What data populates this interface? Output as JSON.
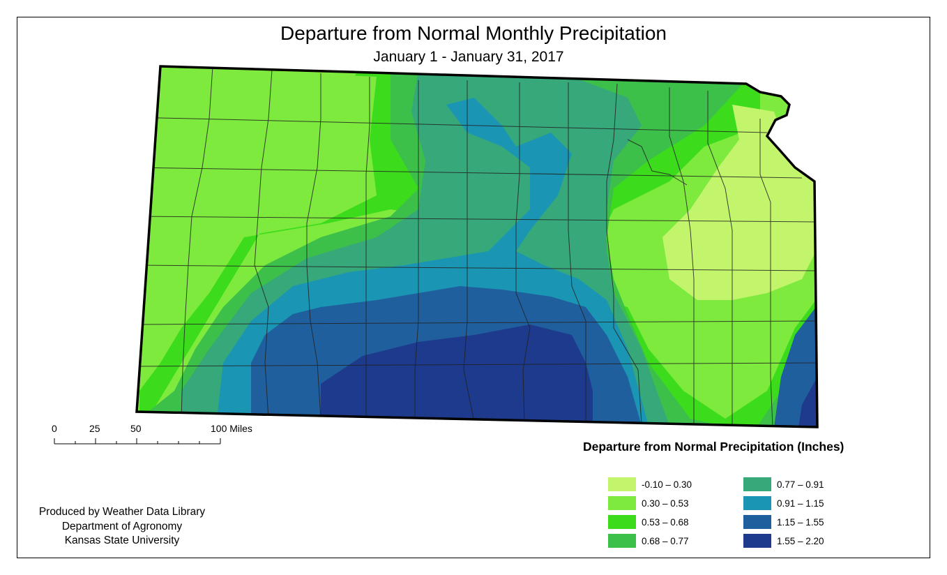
{
  "title": "Departure from Normal Monthly Precipitation",
  "subtitle": "January 1 - January 31, 2017",
  "scale": {
    "ticks": [
      "0",
      "25",
      "50",
      "100 Miles"
    ]
  },
  "credits": [
    "Produced by Weather Data Library",
    "Department of Agronomy",
    "Kansas State University"
  ],
  "legend": {
    "title": "Departure from Normal Precipitation (Inches)",
    "items": [
      {
        "label": "-0.10 – 0.30",
        "color": "#c2f56c"
      },
      {
        "label": "0.30 – 0.53",
        "color": "#7fea3e"
      },
      {
        "label": "0.53 – 0.68",
        "color": "#3cdc1c"
      },
      {
        "label": "0.68 – 0.77",
        "color": "#3cc04a"
      },
      {
        "label": "0.77 – 0.91",
        "color": "#36a87a"
      },
      {
        "label": "0.91 – 1.15",
        "color": "#1a96b4"
      },
      {
        "label": "1.15 – 1.55",
        "color": "#205f9e"
      },
      {
        "label": "1.55 – 2.20",
        "color": "#1d3a8c"
      }
    ]
  }
}
